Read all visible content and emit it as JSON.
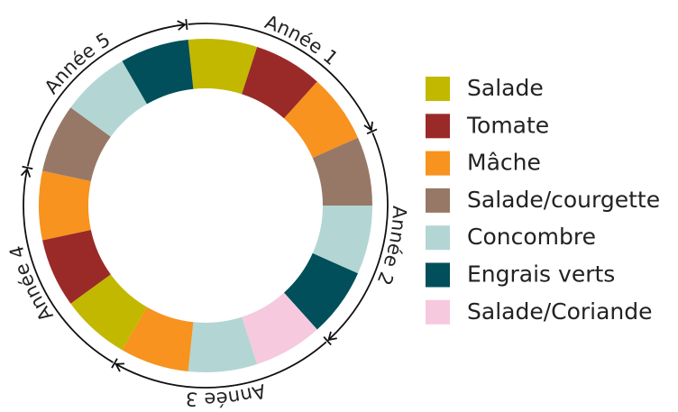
{
  "ring": [
    "#c3b800",
    "#9a2a28",
    "#f7931e",
    "#977866",
    "#b3d6d4",
    "#004f5a",
    "#f6c9df",
    "#b3d6d4",
    "#f7931e",
    "#c3b800",
    "#9a2a28",
    "#f7931e",
    "#977866",
    "#b3d6d4",
    "#004f5a"
  ],
  "years": [
    "Année 1",
    "Année 2",
    "Année 3",
    "Année 4",
    "Année 5"
  ],
  "legend": [
    {
      "name": "Salade",
      "color": "#c3b800"
    },
    {
      "name": "Tomate",
      "color": "#9a2a28"
    },
    {
      "name": "Mâche",
      "color": "#f7931e"
    },
    {
      "name": "Salade/courgette",
      "color": "#977866"
    },
    {
      "name": "Concombre",
      "color": "#b3d6d4"
    },
    {
      "name": "Engrais verts",
      "color": "#004f5a"
    },
    {
      "name": "Salade/Coriande",
      "color": "#f6c9df"
    }
  ]
}
